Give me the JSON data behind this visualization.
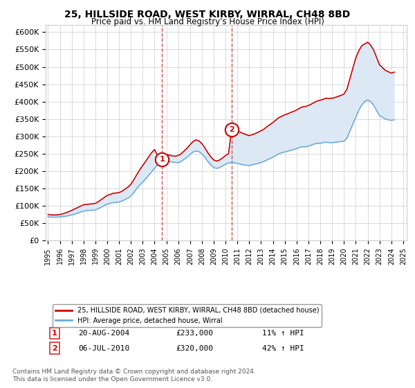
{
  "title": "25, HILLSIDE ROAD, WEST KIRBY, WIRRAL, CH48 8BD",
  "subtitle": "Price paid vs. HM Land Registry's House Price Index (HPI)",
  "ylim": [
    0,
    620000
  ],
  "yticks": [
    0,
    50000,
    100000,
    150000,
    200000,
    250000,
    300000,
    350000,
    400000,
    450000,
    500000,
    550000,
    600000
  ],
  "ytick_labels": [
    "£0",
    "£50K",
    "£100K",
    "£150K",
    "£200K",
    "£250K",
    "£300K",
    "£350K",
    "£400K",
    "£450K",
    "£500K",
    "£550K",
    "£600K"
  ],
  "sale1_date": 2004.64,
  "sale1_price": 233000,
  "sale1_label": "1",
  "sale1_text": "20-AUG-2004",
  "sale1_amount": "£233,000",
  "sale1_hpi": "11% ↑ HPI",
  "sale2_date": 2010.51,
  "sale2_price": 320000,
  "sale2_label": "2",
  "sale2_text": "06-JUL-2010",
  "sale2_amount": "£320,000",
  "sale2_hpi": "42% ↑ HPI",
  "sale_color": "#cc0000",
  "hpi_color": "#6baed6",
  "shade_color": "#dce9f5",
  "vline_color": "#cc0000",
  "legend_sale_label": "25, HILLSIDE ROAD, WEST KIRBY, WIRRAL, CH48 8BD (detached house)",
  "legend_hpi_label": "HPI: Average price, detached house, Wirral",
  "footnote": "Contains HM Land Registry data © Crown copyright and database right 2024.\nThis data is licensed under the Open Government Licence v3.0.",
  "hpi_data": {
    "years": [
      1995.0,
      1995.25,
      1995.5,
      1995.75,
      1996.0,
      1996.25,
      1996.5,
      1996.75,
      1997.0,
      1997.25,
      1997.5,
      1997.75,
      1998.0,
      1998.25,
      1998.5,
      1998.75,
      1999.0,
      1999.25,
      1999.5,
      1999.75,
      2000.0,
      2000.25,
      2000.5,
      2000.75,
      2001.0,
      2001.25,
      2001.5,
      2001.75,
      2002.0,
      2002.25,
      2002.5,
      2002.75,
      2003.0,
      2003.25,
      2003.5,
      2003.75,
      2004.0,
      2004.25,
      2004.5,
      2004.75,
      2005.0,
      2005.25,
      2005.5,
      2005.75,
      2006.0,
      2006.25,
      2006.5,
      2006.75,
      2007.0,
      2007.25,
      2007.5,
      2007.75,
      2008.0,
      2008.25,
      2008.5,
      2008.75,
      2009.0,
      2009.25,
      2009.5,
      2009.75,
      2010.0,
      2010.25,
      2010.5,
      2010.75,
      2011.0,
      2011.25,
      2011.5,
      2011.75,
      2012.0,
      2012.25,
      2012.5,
      2012.75,
      2013.0,
      2013.25,
      2013.5,
      2013.75,
      2014.0,
      2014.25,
      2014.5,
      2014.75,
      2015.0,
      2015.25,
      2015.5,
      2015.75,
      2016.0,
      2016.25,
      2016.5,
      2016.75,
      2017.0,
      2017.25,
      2017.5,
      2017.75,
      2018.0,
      2018.25,
      2018.5,
      2018.75,
      2019.0,
      2019.25,
      2019.5,
      2019.75,
      2020.0,
      2020.25,
      2020.5,
      2020.75,
      2021.0,
      2021.25,
      2021.5,
      2021.75,
      2022.0,
      2022.25,
      2022.5,
      2022.75,
      2023.0,
      2023.25,
      2023.5,
      2023.75,
      2024.0,
      2024.25
    ],
    "values": [
      68000,
      67500,
      67000,
      67500,
      68000,
      69000,
      70000,
      72000,
      74000,
      76000,
      79000,
      82000,
      85000,
      86000,
      87000,
      87500,
      88000,
      92000,
      96000,
      101000,
      105000,
      107000,
      109000,
      110000,
      111000,
      114000,
      118000,
      122000,
      128000,
      138000,
      150000,
      160000,
      168000,
      178000,
      188000,
      198000,
      208000,
      218000,
      225000,
      228000,
      230000,
      228000,
      226000,
      225000,
      224000,
      228000,
      234000,
      240000,
      248000,
      255000,
      258000,
      256000,
      250000,
      240000,
      228000,
      218000,
      210000,
      208000,
      210000,
      215000,
      220000,
      223000,
      225000,
      224000,
      222000,
      220000,
      218000,
      217000,
      216000,
      218000,
      220000,
      222000,
      225000,
      228000,
      232000,
      236000,
      240000,
      245000,
      250000,
      253000,
      255000,
      257000,
      260000,
      262000,
      265000,
      268000,
      270000,
      270000,
      272000,
      275000,
      278000,
      280000,
      280000,
      282000,
      283000,
      282000,
      282000,
      283000,
      284000,
      285000,
      286000,
      295000,
      315000,
      335000,
      355000,
      375000,
      390000,
      400000,
      405000,
      400000,
      390000,
      375000,
      360000,
      355000,
      350000,
      348000,
      346000,
      348000
    ]
  },
  "sale_data": {
    "years": [
      1995.0,
      1995.25,
      1995.5,
      1995.75,
      1996.0,
      1996.25,
      1996.5,
      1996.75,
      1997.0,
      1997.25,
      1997.5,
      1997.75,
      1998.0,
      1998.25,
      1998.5,
      1998.75,
      1999.0,
      1999.25,
      1999.5,
      1999.75,
      2000.0,
      2000.25,
      2000.5,
      2000.75,
      2001.0,
      2001.25,
      2001.5,
      2001.75,
      2002.0,
      2002.25,
      2002.5,
      2002.75,
      2003.0,
      2003.25,
      2003.5,
      2003.75,
      2004.0,
      2004.25,
      2004.5,
      2004.75,
      2005.0,
      2005.25,
      2005.5,
      2005.75,
      2006.0,
      2006.25,
      2006.5,
      2006.75,
      2007.0,
      2007.25,
      2007.5,
      2007.75,
      2008.0,
      2008.25,
      2008.5,
      2008.75,
      2009.0,
      2009.25,
      2009.5,
      2009.75,
      2010.0,
      2010.25,
      2010.5,
      2010.75,
      2011.0,
      2011.25,
      2011.5,
      2011.75,
      2012.0,
      2012.25,
      2012.5,
      2012.75,
      2013.0,
      2013.25,
      2013.5,
      2013.75,
      2014.0,
      2014.25,
      2014.5,
      2014.75,
      2015.0,
      2015.25,
      2015.5,
      2015.75,
      2016.0,
      2016.25,
      2016.5,
      2016.75,
      2017.0,
      2017.25,
      2017.5,
      2017.75,
      2018.0,
      2018.25,
      2018.5,
      2018.75,
      2019.0,
      2019.25,
      2019.5,
      2019.75,
      2020.0,
      2020.25,
      2020.5,
      2020.75,
      2021.0,
      2021.25,
      2021.5,
      2021.75,
      2022.0,
      2022.25,
      2022.5,
      2022.75,
      2023.0,
      2023.25,
      2023.5,
      2023.75,
      2024.0,
      2024.25
    ],
    "values": [
      75000,
      74000,
      73500,
      74000,
      75000,
      77000,
      80000,
      83000,
      87000,
      91000,
      95000,
      99000,
      103000,
      104000,
      105000,
      106000,
      107000,
      112000,
      118000,
      124000,
      130000,
      133000,
      136000,
      137000,
      138000,
      142000,
      148000,
      154000,
      162000,
      175000,
      190000,
      204000,
      216000,
      228000,
      241000,
      253000,
      262000,
      245000,
      233000,
      240000,
      248000,
      246000,
      244000,
      243000,
      245000,
      250000,
      258000,
      266000,
      276000,
      285000,
      290000,
      287000,
      279000,
      267000,
      253000,
      241000,
      232000,
      229000,
      232000,
      238000,
      245000,
      250000,
      320000,
      318000,
      315000,
      312000,
      308000,
      305000,
      302000,
      305000,
      308000,
      312000,
      316000,
      321000,
      328000,
      334000,
      340000,
      347000,
      354000,
      358000,
      362000,
      365000,
      369000,
      372000,
      376000,
      381000,
      385000,
      386000,
      389000,
      393000,
      398000,
      402000,
      404000,
      407000,
      410000,
      409000,
      410000,
      412000,
      415000,
      418000,
      422000,
      436000,
      466000,
      496000,
      526000,
      546000,
      561000,
      566000,
      571000,
      563000,
      549000,
      528000,
      506000,
      498000,
      490000,
      486000,
      482000,
      485000
    ]
  }
}
